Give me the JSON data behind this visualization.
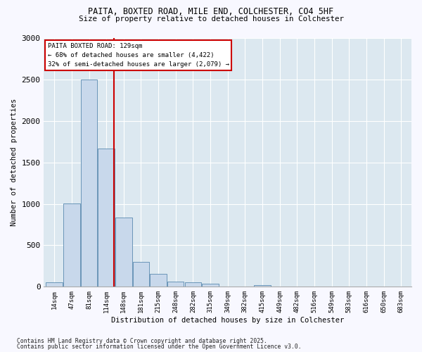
{
  "title1": "PAITA, BOXTED ROAD, MILE END, COLCHESTER, CO4 5HF",
  "title2": "Size of property relative to detached houses in Colchester",
  "xlabel": "Distribution of detached houses by size in Colchester",
  "ylabel": "Number of detached properties",
  "categories": [
    "14sqm",
    "47sqm",
    "81sqm",
    "114sqm",
    "148sqm",
    "181sqm",
    "215sqm",
    "248sqm",
    "282sqm",
    "315sqm",
    "349sqm",
    "382sqm",
    "415sqm",
    "449sqm",
    "482sqm",
    "516sqm",
    "549sqm",
    "583sqm",
    "616sqm",
    "650sqm",
    "683sqm"
  ],
  "values": [
    55,
    1005,
    2500,
    1670,
    835,
    300,
    155,
    60,
    50,
    35,
    0,
    0,
    20,
    0,
    0,
    0,
    0,
    0,
    0,
    0,
    0
  ],
  "bar_color": "#c8d8eb",
  "bar_edge_color": "#5a8ab0",
  "annotation_text1": "PAITA BOXTED ROAD: 129sqm",
  "annotation_text2": "← 68% of detached houses are smaller (4,422)",
  "annotation_text3": "32% of semi-detached houses are larger (2,079) →",
  "vline_color": "#cc0000",
  "plot_bg_color": "#dce8f0",
  "fig_bg_color": "#f8f8ff",
  "footnote1": "Contains HM Land Registry data © Crown copyright and database right 2025.",
  "footnote2": "Contains public sector information licensed under the Open Government Licence v3.0.",
  "ylim": [
    0,
    3000
  ],
  "yticks": [
    0,
    500,
    1000,
    1500,
    2000,
    2500,
    3000
  ]
}
